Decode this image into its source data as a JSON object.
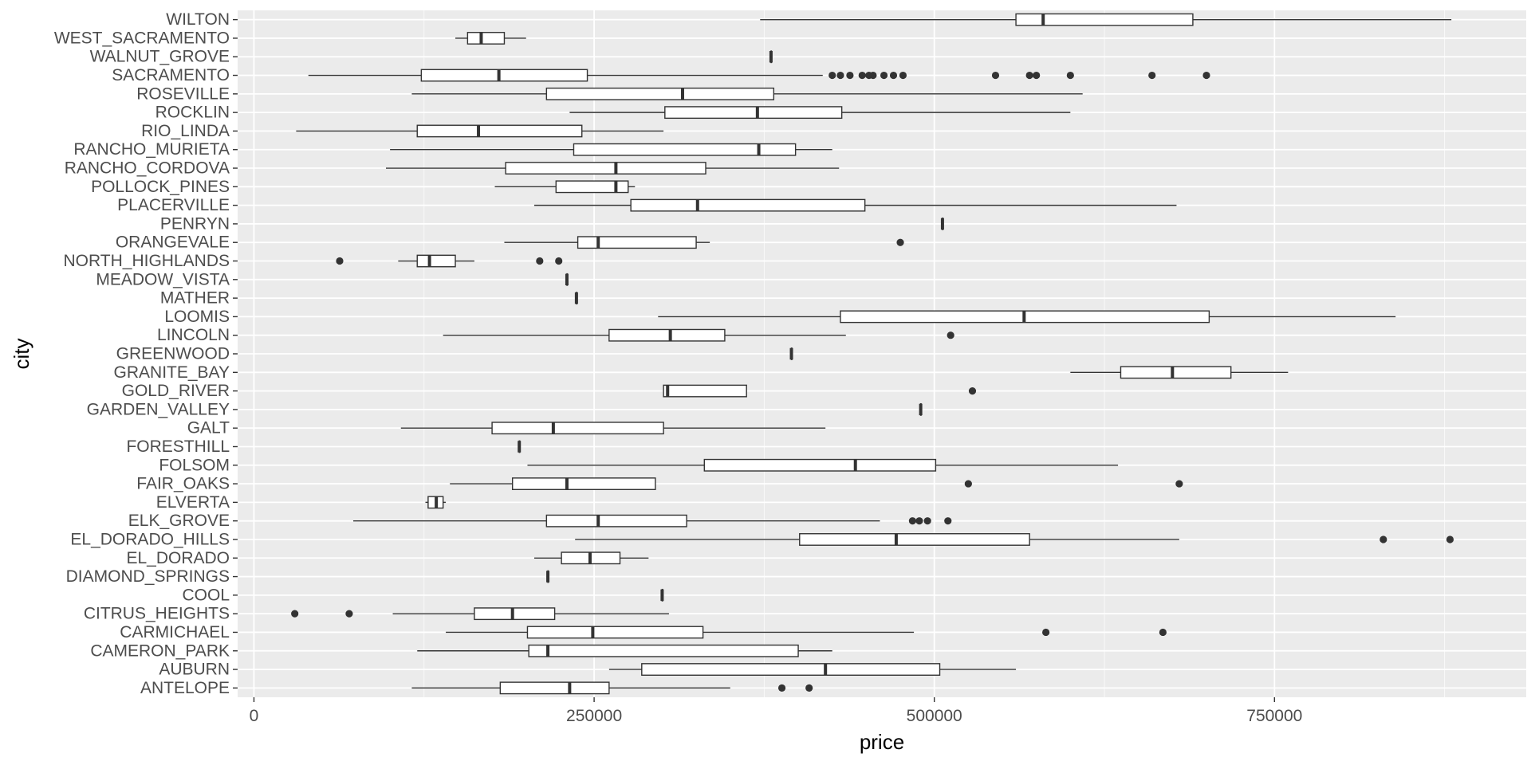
{
  "chart_data": {
    "type": "boxplot",
    "xlabel": "price",
    "ylabel": "city",
    "xlim": [
      -12000,
      935000
    ],
    "x_ticks": [
      0,
      250000,
      500000,
      750000
    ],
    "x_tick_labels": [
      "0",
      "250000",
      "500000",
      "750000"
    ],
    "grid": true,
    "legend": "none",
    "colors": {
      "panel": "#ebebeb",
      "grid_major": "#ffffff",
      "box_fill": "#ffffff",
      "box_line": "#333333",
      "outlier": "#333333",
      "axis_text": "#4d4d4d",
      "tick": "#333333"
    },
    "categories": [
      "ANTELOPE",
      "AUBURN",
      "CAMERON_PARK",
      "CARMICHAEL",
      "CITRUS_HEIGHTS",
      "COOL",
      "DIAMOND_SPRINGS",
      "EL_DORADO",
      "EL_DORADO_HILLS",
      "ELK_GROVE",
      "ELVERTA",
      "FAIR_OAKS",
      "FOLSOM",
      "FORESTHILL",
      "GALT",
      "GARDEN_VALLEY",
      "GOLD_RIVER",
      "GRANITE_BAY",
      "GREENWOOD",
      "LINCOLN",
      "LOOMIS",
      "MATHER",
      "MEADOW_VISTA",
      "NORTH_HIGHLANDS",
      "ORANGEVALE",
      "PENRYN",
      "PLACERVILLE",
      "POLLOCK_PINES",
      "RANCHO_CORDOVA",
      "RANCHO_MURIETA",
      "RIO_LINDA",
      "ROCKLIN",
      "ROSEVILLE",
      "SACRAMENTO",
      "WALNUT_GROVE",
      "WEST_SACRAMENTO",
      "WILTON"
    ],
    "boxes": [
      {
        "city": "ANTELOPE",
        "whisker_low": 116000,
        "q1": 181000,
        "median": 232000,
        "q3": 261000,
        "whisker_high": 350000,
        "outliers": [
          388000,
          408000
        ]
      },
      {
        "city": "AUBURN",
        "whisker_low": 261000,
        "q1": 285000,
        "median": 420000,
        "q3": 504000,
        "whisker_high": 560000,
        "outliers": []
      },
      {
        "city": "CAMERON_PARK",
        "whisker_low": 120000,
        "q1": 202000,
        "median": 216000,
        "q3": 400000,
        "whisker_high": 425000,
        "outliers": []
      },
      {
        "city": "CARMICHAEL",
        "whisker_low": 141000,
        "q1": 201000,
        "median": 249000,
        "q3": 330000,
        "whisker_high": 485000,
        "outliers": [
          582000,
          668000
        ]
      },
      {
        "city": "CITRUS_HEIGHTS",
        "whisker_low": 102000,
        "q1": 162000,
        "median": 190000,
        "q3": 221000,
        "whisker_high": 305000,
        "outliers": [
          30000,
          70000
        ]
      },
      {
        "city": "COOL",
        "whisker_low": 300000,
        "q1": 300000,
        "median": 300000,
        "q3": 300000,
        "whisker_high": 300000,
        "outliers": []
      },
      {
        "city": "DIAMOND_SPRINGS",
        "whisker_low": 216000,
        "q1": 216000,
        "median": 216000,
        "q3": 216000,
        "whisker_high": 216000,
        "outliers": []
      },
      {
        "city": "EL_DORADO",
        "whisker_low": 206000,
        "q1": 226000,
        "median": 247000,
        "q3": 269000,
        "whisker_high": 290000,
        "outliers": []
      },
      {
        "city": "EL_DORADO_HILLS",
        "whisker_low": 236000,
        "q1": 401000,
        "median": 472000,
        "q3": 570000,
        "whisker_high": 680000,
        "outliers": [
          830000,
          879000
        ]
      },
      {
        "city": "ELK_GROVE",
        "whisker_low": 73000,
        "q1": 215000,
        "median": 253000,
        "q3": 318000,
        "whisker_high": 460000,
        "outliers": [
          484000,
          489000,
          495000,
          510000
        ]
      },
      {
        "city": "ELVERTA",
        "whisker_low": 126000,
        "q1": 128000,
        "median": 134000,
        "q3": 139000,
        "whisker_high": 141000,
        "outliers": []
      },
      {
        "city": "FAIR_OAKS",
        "whisker_low": 144000,
        "q1": 190000,
        "median": 230000,
        "q3": 295000,
        "whisker_high": 295000,
        "outliers": [
          525000,
          680000
        ]
      },
      {
        "city": "FOLSOM",
        "whisker_low": 201000,
        "q1": 331000,
        "median": 442000,
        "q3": 501000,
        "whisker_high": 635000,
        "outliers": []
      },
      {
        "city": "FORESTHILL",
        "whisker_low": 195000,
        "q1": 195000,
        "median": 195000,
        "q3": 195000,
        "whisker_high": 195000,
        "outliers": []
      },
      {
        "city": "GALT",
        "whisker_low": 108000,
        "q1": 175000,
        "median": 220000,
        "q3": 301000,
        "whisker_high": 420000,
        "outliers": []
      },
      {
        "city": "GARDEN_VALLEY",
        "whisker_low": 490000,
        "q1": 490000,
        "median": 490000,
        "q3": 490000,
        "whisker_high": 490000,
        "outliers": []
      },
      {
        "city": "GOLD_RIVER",
        "whisker_low": 301000,
        "q1": 301000,
        "median": 304000,
        "q3": 362000,
        "whisker_high": 362000,
        "outliers": [
          528000
        ]
      },
      {
        "city": "GRANITE_BAY",
        "whisker_low": 600000,
        "q1": 637000,
        "median": 675000,
        "q3": 718000,
        "whisker_high": 760000,
        "outliers": []
      },
      {
        "city": "GREENWOOD",
        "whisker_low": 395000,
        "q1": 395000,
        "median": 395000,
        "q3": 395000,
        "whisker_high": 395000,
        "outliers": []
      },
      {
        "city": "LINCOLN",
        "whisker_low": 139000,
        "q1": 261000,
        "median": 306000,
        "q3": 346000,
        "whisker_high": 435000,
        "outliers": [
          512000
        ]
      },
      {
        "city": "LOOMIS",
        "whisker_low": 297000,
        "q1": 431000,
        "median": 566000,
        "q3": 702000,
        "whisker_high": 839000,
        "outliers": []
      },
      {
        "city": "MATHER",
        "whisker_low": 237000,
        "q1": 237000,
        "median": 237000,
        "q3": 237000,
        "whisker_high": 237000,
        "outliers": []
      },
      {
        "city": "MEADOW_VISTA",
        "whisker_low": 230000,
        "q1": 230000,
        "median": 230000,
        "q3": 230000,
        "whisker_high": 230000,
        "outliers": []
      },
      {
        "city": "NORTH_HIGHLANDS",
        "whisker_low": 106000,
        "q1": 120000,
        "median": 129000,
        "q3": 148000,
        "whisker_high": 162000,
        "outliers": [
          63000,
          210000,
          224000
        ]
      },
      {
        "city": "ORANGEVALE",
        "whisker_low": 184000,
        "q1": 238000,
        "median": 253000,
        "q3": 325000,
        "whisker_high": 335000,
        "outliers": [
          475000
        ]
      },
      {
        "city": "PENRYN",
        "whisker_low": 506000,
        "q1": 506000,
        "median": 506000,
        "q3": 506000,
        "whisker_high": 506000,
        "outliers": []
      },
      {
        "city": "PLACERVILLE",
        "whisker_low": 206000,
        "q1": 277000,
        "median": 326000,
        "q3": 449000,
        "whisker_high": 678000,
        "outliers": []
      },
      {
        "city": "POLLOCK_PINES",
        "whisker_low": 177000,
        "q1": 222000,
        "median": 266000,
        "q3": 275000,
        "whisker_high": 280000,
        "outliers": []
      },
      {
        "city": "RANCHO_CORDOVA",
        "whisker_low": 97000,
        "q1": 185000,
        "median": 266000,
        "q3": 332000,
        "whisker_high": 430000,
        "outliers": []
      },
      {
        "city": "RANCHO_MURIETA",
        "whisker_low": 100000,
        "q1": 235000,
        "median": 371000,
        "q3": 398000,
        "whisker_high": 425000,
        "outliers": []
      },
      {
        "city": "RIO_LINDA",
        "whisker_low": 31000,
        "q1": 120000,
        "median": 165000,
        "q3": 241000,
        "whisker_high": 301000,
        "outliers": []
      },
      {
        "city": "ROCKLIN",
        "whisker_low": 232000,
        "q1": 302000,
        "median": 370000,
        "q3": 432000,
        "whisker_high": 600000,
        "outliers": []
      },
      {
        "city": "ROSEVILLE",
        "whisker_low": 116000,
        "q1": 215000,
        "median": 315000,
        "q3": 382000,
        "whisker_high": 609000,
        "outliers": []
      },
      {
        "city": "SACRAMENTO",
        "whisker_low": 40000,
        "q1": 123000,
        "median": 180000,
        "q3": 245000,
        "whisker_high": 418000,
        "outliers": [
          425000,
          431000,
          438000,
          447000,
          452000,
          455000,
          463000,
          470000,
          477000,
          545000,
          570000,
          575000,
          600000,
          660000,
          700000
        ]
      },
      {
        "city": "WALNUT_GROVE",
        "whisker_low": 380000,
        "q1": 380000,
        "median": 380000,
        "q3": 380000,
        "whisker_high": 380000,
        "outliers": []
      },
      {
        "city": "WEST_SACRAMENTO",
        "whisker_low": 148000,
        "q1": 157000,
        "median": 167000,
        "q3": 184000,
        "whisker_high": 200000,
        "outliers": []
      },
      {
        "city": "WILTON",
        "whisker_low": 372000,
        "q1": 560000,
        "median": 580000,
        "q3": 690000,
        "whisker_high": 880000,
        "outliers": []
      }
    ]
  }
}
